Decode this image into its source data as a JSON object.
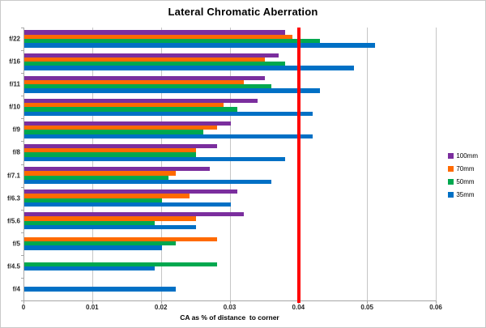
{
  "window": {
    "background": "#ffffff",
    "frame_border_color": "#c9c9c9"
  },
  "chart_data": {
    "type": "bar",
    "orientation": "horizontal",
    "title": "Lateral Chromatic Aberration",
    "xlabel": "CA as % of distance  to corner",
    "categories": [
      "f/22",
      "f/16",
      "f/11",
      "f/10",
      "f/9",
      "f/8",
      "f/7.1",
      "f/6.3",
      "f/5.6",
      "f/5",
      "f/4.5",
      "f/4"
    ],
    "series": [
      {
        "name": "100mm",
        "color": "#7B2E9E",
        "values": [
          0.038,
          0.037,
          0.035,
          0.034,
          0.03,
          0.028,
          0.027,
          0.031,
          0.032,
          null,
          null,
          null
        ]
      },
      {
        "name": "70mm",
        "color": "#FF6A00",
        "values": [
          0.039,
          0.035,
          0.032,
          0.029,
          0.028,
          0.025,
          0.022,
          0.024,
          0.025,
          0.028,
          null,
          null
        ]
      },
      {
        "name": "50mm",
        "color": "#00A84F",
        "values": [
          0.043,
          0.038,
          0.036,
          0.031,
          0.026,
          0.025,
          0.021,
          0.02,
          0.019,
          0.022,
          0.028,
          null
        ]
      },
      {
        "name": "35mm",
        "color": "#0070C5",
        "values": [
          0.051,
          0.048,
          0.043,
          0.042,
          0.042,
          0.038,
          0.036,
          0.03,
          0.025,
          0.02,
          0.019,
          0.022
        ]
      }
    ],
    "x_ticks": [
      "0",
      "0.01",
      "0.02",
      "0.03",
      "0.04",
      "0.05",
      "0.06"
    ],
    "xlim": [
      0,
      0.06
    ],
    "reference_line": {
      "value": 0.04,
      "color": "#FF0000"
    },
    "legend_position": "right",
    "grid": "vertical",
    "gridline_color": "#c6c6c6",
    "axis_color": "#a6a6a6"
  }
}
